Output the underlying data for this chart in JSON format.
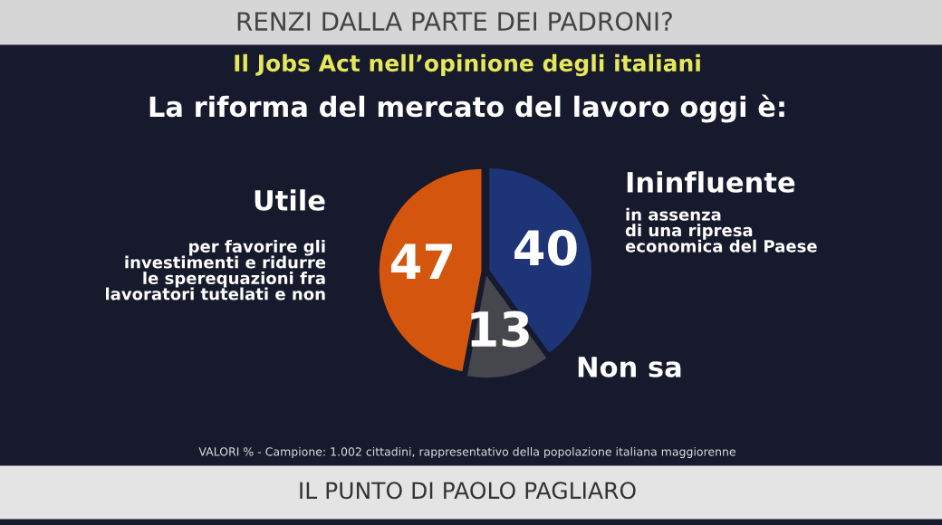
{
  "chart_data": {
    "type": "pie",
    "title": "RENZI DALLA PARTE DEI PADRONI?",
    "subtitle": "Il Jobs Act nell’opinione degli italiani",
    "categories": [
      "Ininfluente",
      "Non sa",
      "Utile"
    ],
    "values": [
      40,
      13,
      47
    ],
    "colors": [
      "#1d3577",
      "#46474c",
      "#d4560e"
    ],
    "data_labels": true,
    "annotations": [
      "La riforma del mercato del lavoro oggi è:",
      "in assenza\ndi una ripresa\neconomica del Paese",
      "per favorire gli\ninvestimenti e ridurre\nle sperequazioni fra\nlavoratori tutelati e non",
      "VALORI % - Campione: 1.002 cittadini, rappresentativo della popolazione italiana maggiorenne",
      "IL PUNTO DI PAOLO PAGLIARO"
    ]
  }
}
